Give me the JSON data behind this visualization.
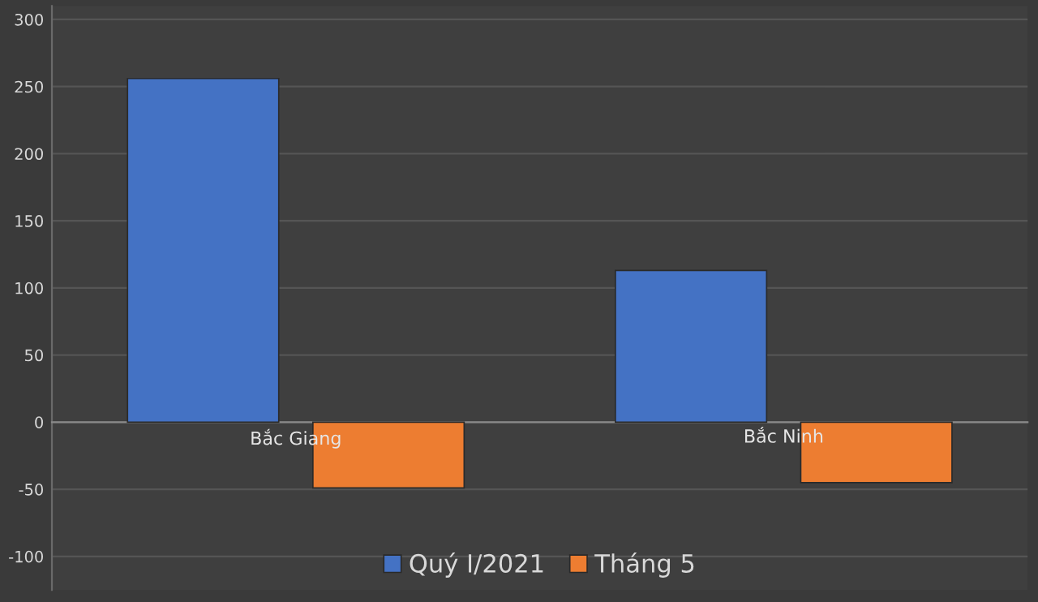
{
  "chart_data": {
    "type": "bar",
    "categories": [
      "Bắc Giang",
      "Bắc Ninh"
    ],
    "series": [
      {
        "name": "Quý I/2021",
        "color": "#4472c4",
        "values": [
          256,
          113
        ]
      },
      {
        "name": "Tháng 5",
        "color": "#ed7d31",
        "values": [
          -49,
          -45
        ]
      }
    ],
    "ylim": [
      -125,
      310
    ],
    "yticks": [
      -100,
      -50,
      0,
      50,
      100,
      150,
      200,
      250,
      300
    ],
    "grid": "y",
    "legend": "bottom"
  }
}
